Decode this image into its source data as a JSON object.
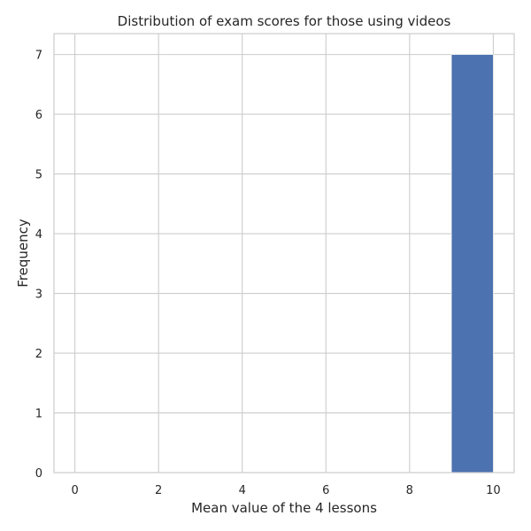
{
  "chart_data": {
    "type": "bar",
    "title": "Distribution of exam scores for those using videos",
    "xlabel": "Mean value of the 4 lessons",
    "ylabel": "Frequency",
    "xlim": [
      -0.5,
      10.5
    ],
    "ylim": [
      0,
      7.35
    ],
    "xticks": [
      0,
      2,
      4,
      6,
      8,
      10
    ],
    "yticks": [
      0,
      1,
      2,
      3,
      4,
      5,
      6,
      7
    ],
    "grid": true,
    "bins": [
      {
        "x0": 9.0,
        "x1": 10.0,
        "count": 7
      }
    ],
    "colors": {
      "bar": "#4c72b0",
      "grid": "#cccccc",
      "spine": "#cccccc",
      "text": "#262626",
      "background": "#ffffff"
    }
  }
}
